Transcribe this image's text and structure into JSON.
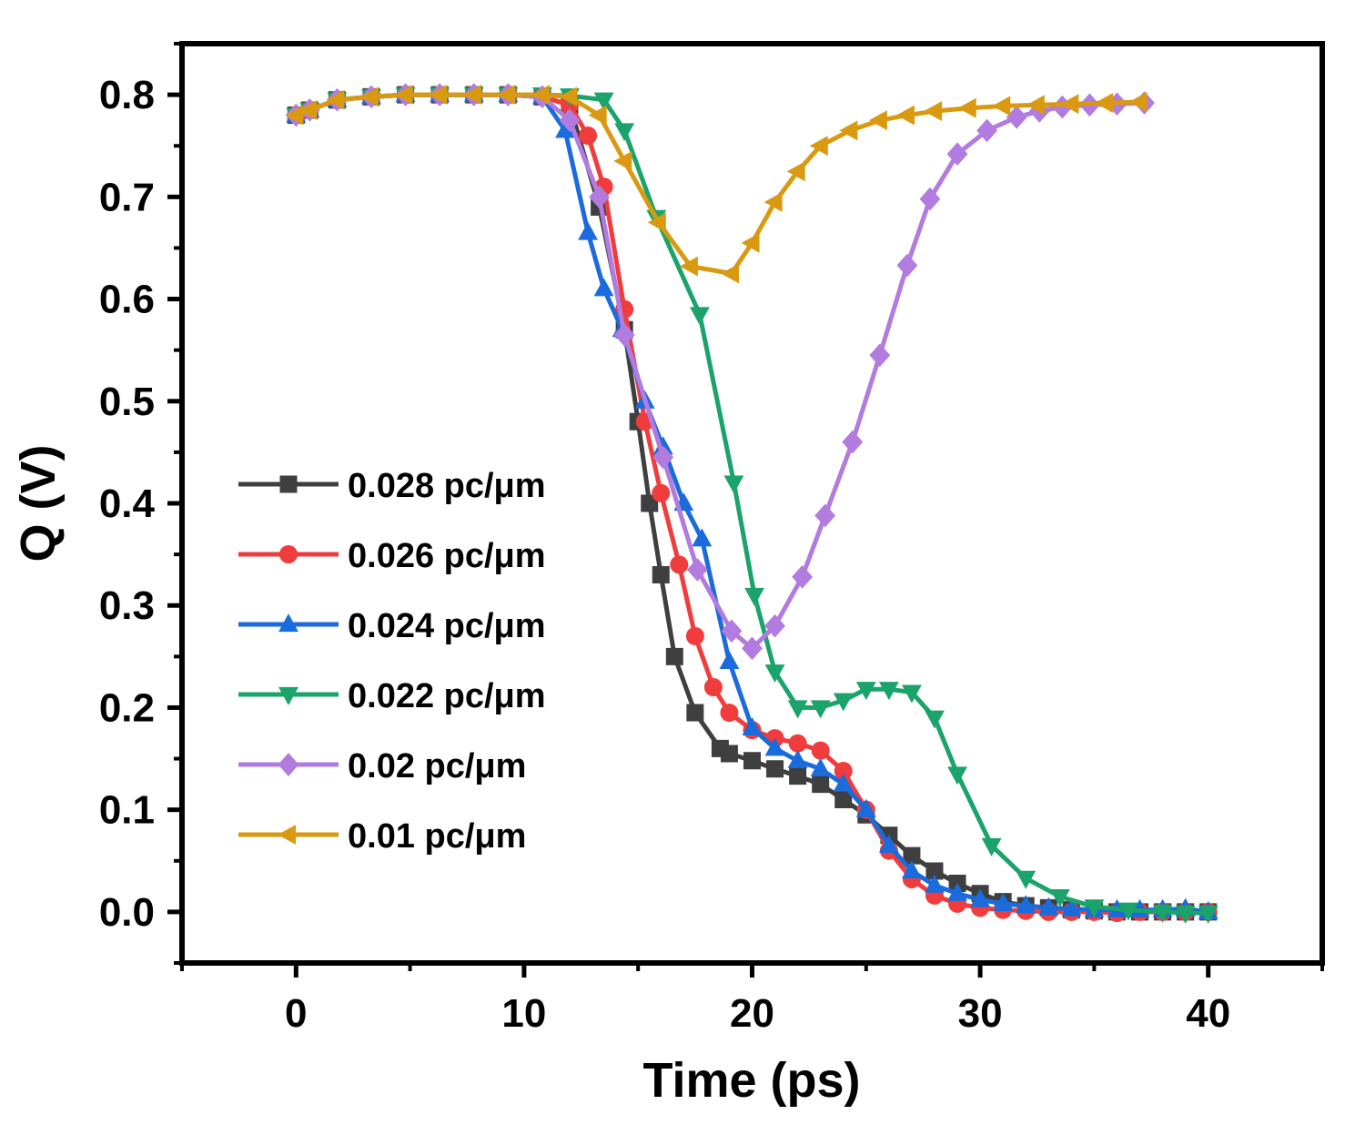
{
  "chart_data": {
    "type": "line",
    "xlabel": "Time (ps)",
    "ylabel": "Q (V)",
    "xlim": [
      -5,
      45
    ],
    "ylim": [
      -0.05,
      0.85
    ],
    "xticks": [
      "0",
      "10",
      "20",
      "30",
      "40"
    ],
    "yticks": [
      "0.0",
      "0.1",
      "0.2",
      "0.3",
      "0.4",
      "0.5",
      "0.6",
      "0.7",
      "0.8"
    ],
    "legend_position": "center-left",
    "series": [
      {
        "name": "0.028 pc/μm",
        "color": "#3f3f3f",
        "marker": "square",
        "x": [
          0,
          0.6,
          1.8,
          3.3,
          4.8,
          6.3,
          7.8,
          9.3,
          10.8,
          12,
          13.3,
          14.4,
          15,
          15.5,
          16,
          16.6,
          17.5,
          18.6,
          19,
          20,
          21,
          22,
          23,
          24,
          25,
          26,
          27,
          28,
          29,
          30,
          31,
          32,
          33,
          34,
          35,
          36,
          37,
          38,
          39,
          40
        ],
        "y": [
          0.78,
          0.785,
          0.795,
          0.798,
          0.8,
          0.8,
          0.8,
          0.8,
          0.798,
          0.79,
          0.69,
          0.57,
          0.48,
          0.4,
          0.33,
          0.25,
          0.195,
          0.16,
          0.155,
          0.148,
          0.14,
          0.133,
          0.125,
          0.11,
          0.095,
          0.075,
          0.055,
          0.04,
          0.028,
          0.018,
          0.01,
          0.006,
          0.004,
          0.002,
          0.001,
          0.0,
          0.0,
          0.0,
          0.0,
          0.0
        ]
      },
      {
        "name": "0.026 pc/μm",
        "color": "#f03c3c",
        "marker": "circle",
        "x": [
          0,
          0.6,
          1.8,
          3.3,
          4.8,
          6.3,
          7.8,
          9.3,
          10.8,
          12,
          12.8,
          13.5,
          14.4,
          15.3,
          16,
          16.8,
          17.5,
          18.3,
          19,
          20,
          21,
          22,
          23,
          24,
          25,
          26,
          27,
          28,
          29,
          30,
          31,
          32,
          33,
          34,
          35,
          36,
          37,
          38,
          39,
          40
        ],
        "y": [
          0.78,
          0.785,
          0.795,
          0.798,
          0.8,
          0.8,
          0.8,
          0.8,
          0.798,
          0.79,
          0.76,
          0.71,
          0.59,
          0.48,
          0.41,
          0.34,
          0.27,
          0.22,
          0.195,
          0.178,
          0.17,
          0.165,
          0.158,
          0.138,
          0.1,
          0.06,
          0.032,
          0.016,
          0.008,
          0.004,
          0.002,
          0.001,
          0.0,
          0.0,
          0.0,
          -0.001,
          0.0,
          0.0,
          0.0,
          0.0
        ]
      },
      {
        "name": "0.024 pc/μm",
        "color": "#1a6bdc",
        "marker": "triangle-up",
        "x": [
          0,
          0.6,
          1.8,
          3.3,
          4.8,
          6.3,
          7.8,
          9.3,
          10.8,
          11.8,
          12.8,
          13.5,
          14.3,
          15.3,
          16.1,
          17,
          17.8,
          19,
          20,
          21,
          22,
          23,
          24,
          25,
          26,
          27,
          28,
          29,
          30,
          31,
          32,
          33,
          34,
          35,
          36,
          37,
          38,
          39,
          40
        ],
        "y": [
          0.78,
          0.785,
          0.795,
          0.798,
          0.8,
          0.8,
          0.8,
          0.8,
          0.798,
          0.765,
          0.665,
          0.61,
          0.57,
          0.5,
          0.455,
          0.4,
          0.365,
          0.245,
          0.18,
          0.16,
          0.148,
          0.14,
          0.125,
          0.1,
          0.065,
          0.04,
          0.026,
          0.018,
          0.012,
          0.008,
          0.006,
          0.004,
          0.003,
          0.002,
          0.002,
          0.002,
          0.002,
          0.003,
          0.0
        ]
      },
      {
        "name": "0.022 pc/μm",
        "color": "#1aa36a",
        "marker": "triangle-down",
        "x": [
          0,
          0.6,
          1.8,
          3.3,
          4.8,
          6.3,
          7.8,
          9.3,
          10.8,
          12,
          13.5,
          14.4,
          15.8,
          17.7,
          19.2,
          20.1,
          21,
          22,
          23,
          24,
          25,
          26,
          27,
          28,
          29,
          30.5,
          32,
          33.5,
          35,
          36.5,
          38,
          39,
          40
        ],
        "y": [
          0.78,
          0.785,
          0.795,
          0.798,
          0.8,
          0.8,
          0.8,
          0.8,
          0.8,
          0.799,
          0.795,
          0.765,
          0.68,
          0.585,
          0.42,
          0.31,
          0.235,
          0.2,
          0.2,
          0.207,
          0.218,
          0.218,
          0.215,
          0.19,
          0.135,
          0.065,
          0.033,
          0.015,
          0.005,
          0.002,
          0.0,
          -0.001,
          -0.001
        ]
      },
      {
        "name": "0.02 pc/μm",
        "color": "#b27be0",
        "marker": "diamond",
        "x": [
          0,
          0.6,
          1.8,
          3.3,
          4.8,
          6.3,
          7.8,
          9.3,
          10.8,
          12,
          13.3,
          14.4,
          16.1,
          17.6,
          19.1,
          20,
          21,
          22.2,
          23.2,
          24.4,
          25.6,
          26.8,
          27.8,
          29,
          30.3,
          31.6,
          32.6,
          33.6,
          34.8,
          36,
          37.2
        ],
        "y": [
          0.78,
          0.785,
          0.795,
          0.798,
          0.8,
          0.8,
          0.8,
          0.8,
          0.798,
          0.775,
          0.7,
          0.565,
          0.445,
          0.335,
          0.275,
          0.258,
          0.28,
          0.328,
          0.388,
          0.46,
          0.545,
          0.633,
          0.698,
          0.742,
          0.765,
          0.778,
          0.784,
          0.788,
          0.79,
          0.791,
          0.792
        ]
      },
      {
        "name": "0.01 pc/μm",
        "color": "#d99a11",
        "marker": "triangle-left",
        "x": [
          0,
          0.6,
          1.8,
          3.3,
          4.8,
          6.3,
          7.8,
          9.3,
          10.8,
          12,
          13.3,
          14.4,
          15.9,
          17.3,
          19.1,
          20,
          21,
          22,
          23,
          24.3,
          25.6,
          26.8,
          28,
          29.5,
          31,
          32.5,
          34,
          35.5,
          37
        ],
        "y": [
          0.78,
          0.785,
          0.795,
          0.798,
          0.8,
          0.8,
          0.8,
          0.8,
          0.8,
          0.798,
          0.78,
          0.735,
          0.675,
          0.632,
          0.625,
          0.655,
          0.695,
          0.725,
          0.75,
          0.765,
          0.775,
          0.78,
          0.784,
          0.787,
          0.789,
          0.79,
          0.791,
          0.792,
          0.793
        ]
      }
    ]
  }
}
